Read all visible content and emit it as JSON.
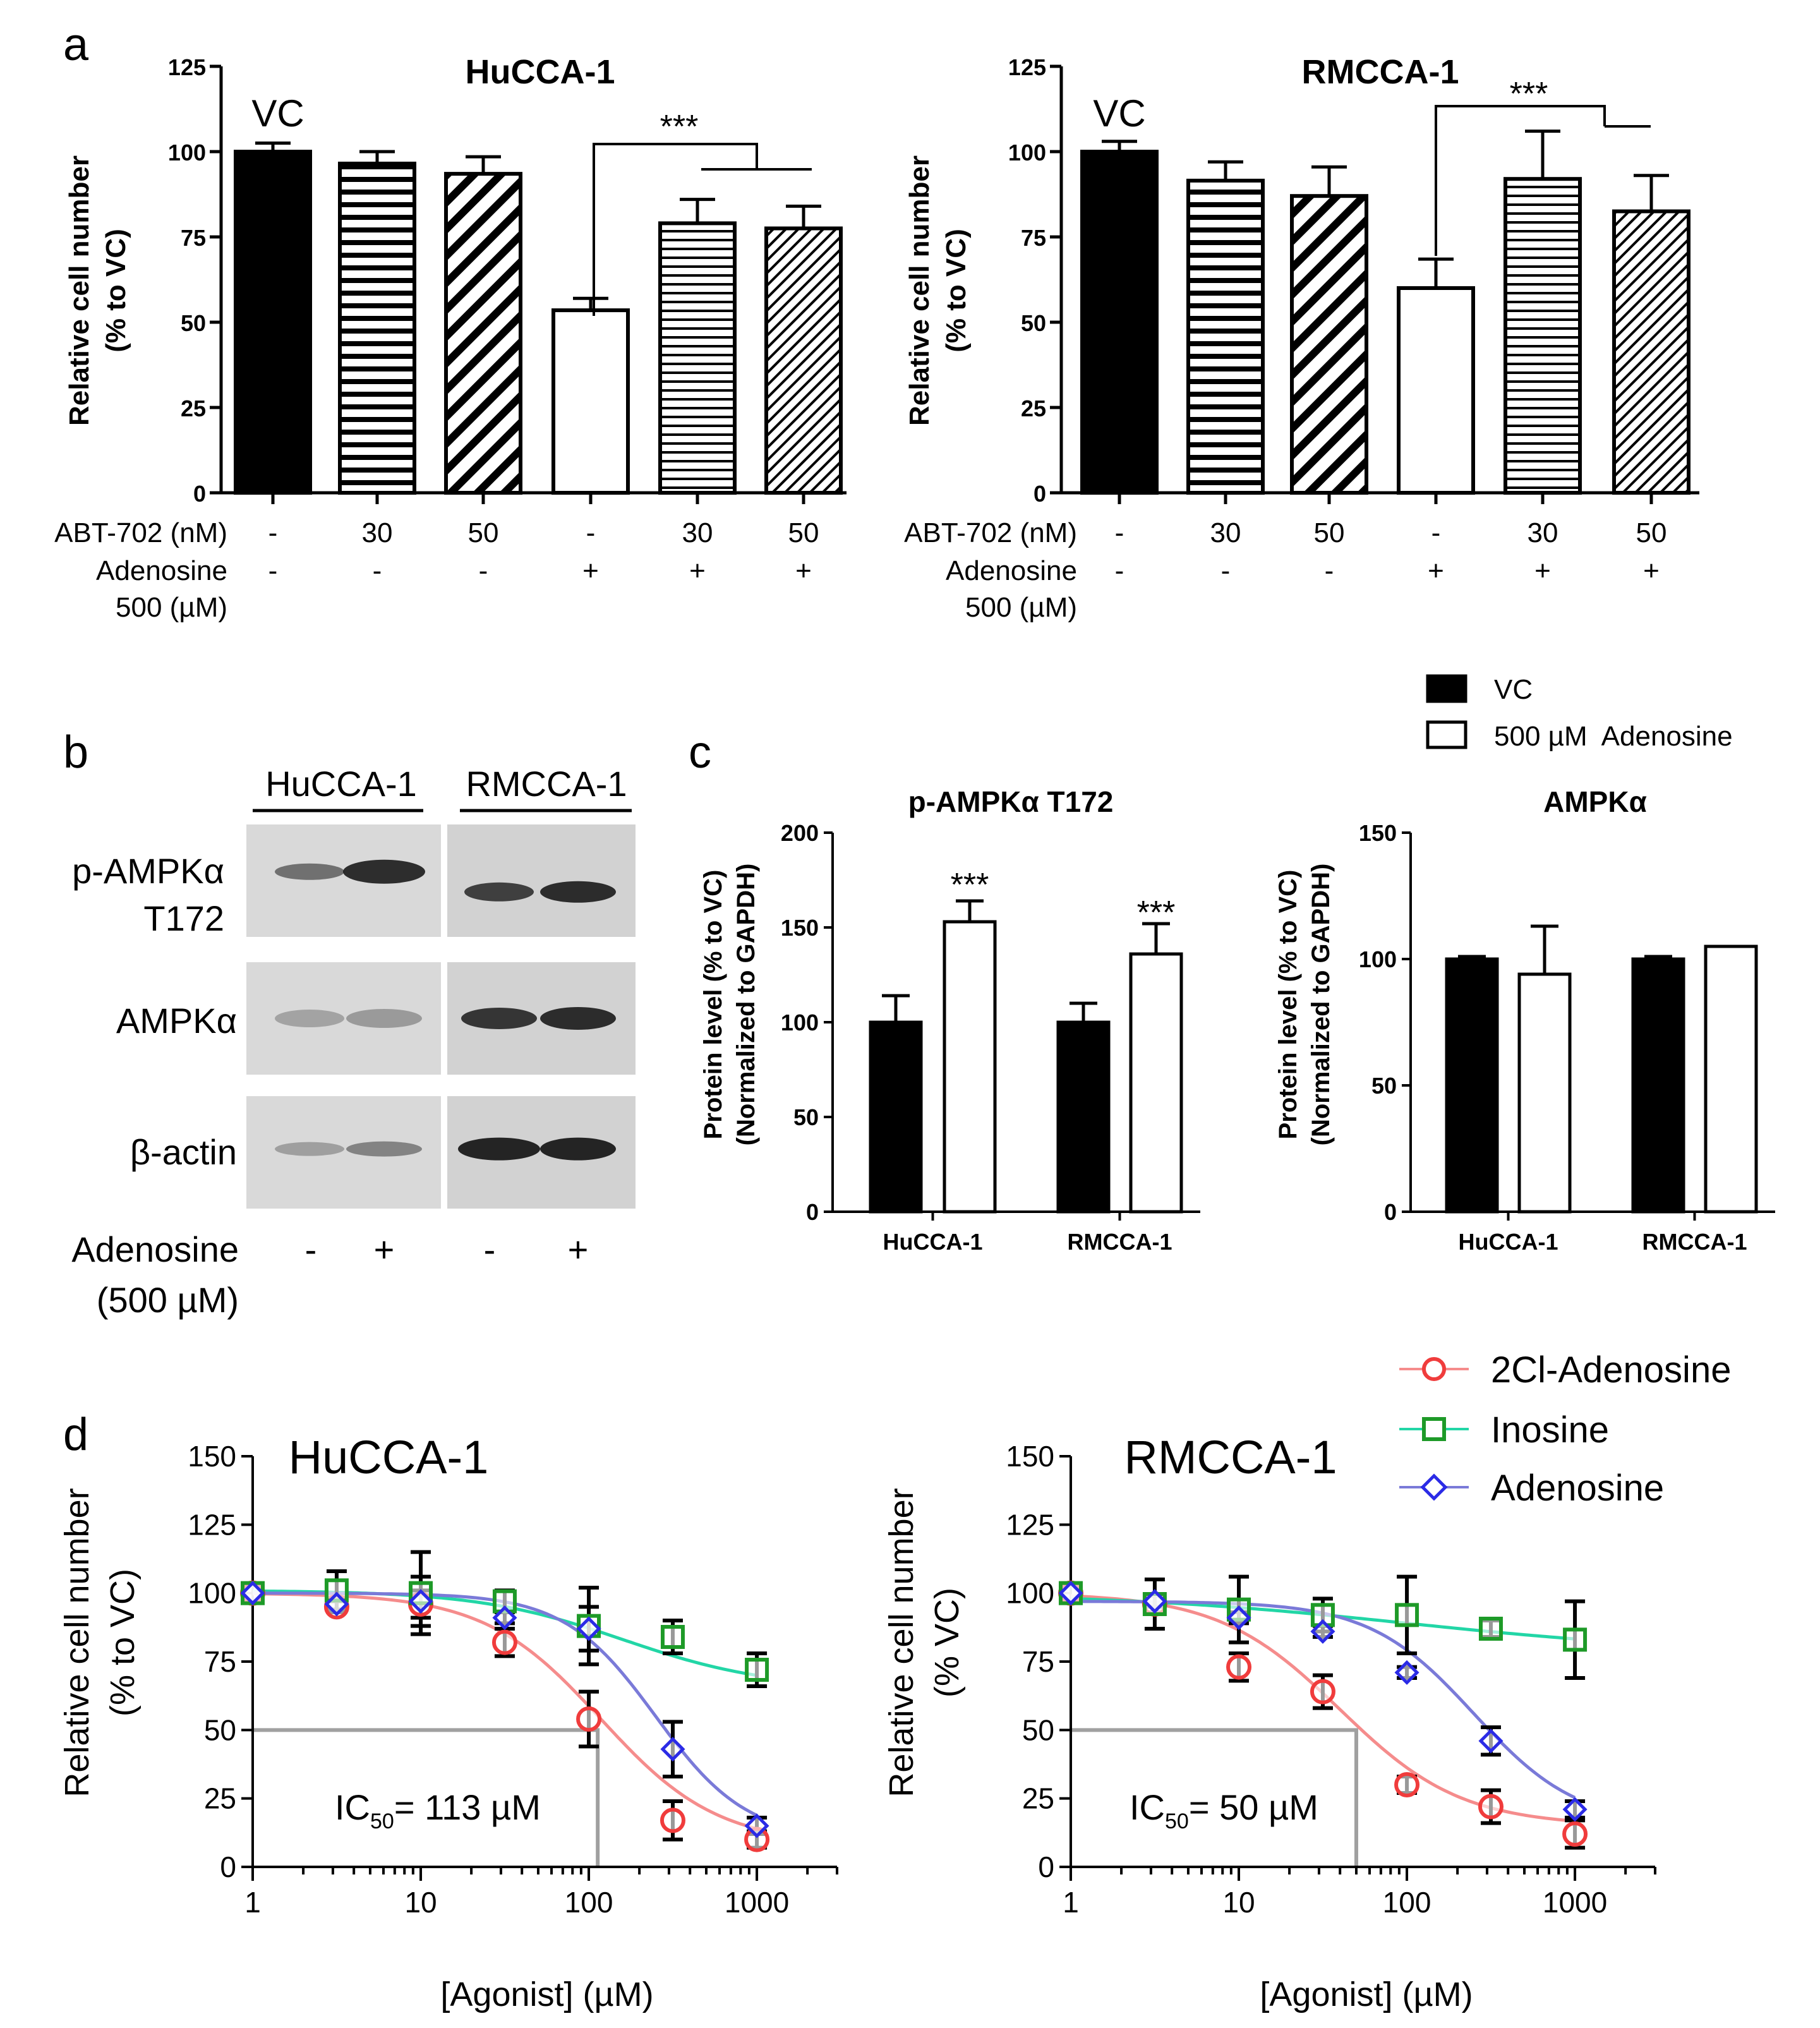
{
  "panels": {
    "a": "a",
    "b": "b",
    "c": "c",
    "d": "d"
  },
  "colors": {
    "red": "#f03c3c",
    "green": "#1e9a28",
    "blue": "#2b2be6",
    "teal": "#22d6a6",
    "pink": "#f58c8c",
    "slate": "#7a7ad8",
    "gray": "#a0a0a0"
  },
  "panel_a": {
    "ylabel_line1": "Relative cell number",
    "ylabel_line2": "(% to VC)",
    "vc_label": "VC",
    "sig": "***",
    "row1_label": "ABT-702 (nM)",
    "row2_label_line1": "Adenosine",
    "row2_label_line2": "500 (µM)",
    "row1_values": [
      "-",
      "30",
      "50",
      "-",
      "30",
      "50"
    ],
    "row2_values": [
      "-",
      "-",
      "-",
      "+",
      "+",
      "+"
    ]
  },
  "panel_b": {
    "groups": [
      "HuCCA-1",
      "RMCCA-1"
    ],
    "rows": [
      {
        "label1": "p-AMPKα",
        "label2": "T172"
      },
      {
        "label1": "AMPKα",
        "label2": ""
      },
      {
        "label1": "β-actin",
        "label2": ""
      }
    ],
    "bottom_label_line1": "Adenosine",
    "bottom_label_line2": "(500 µM)",
    "lanes": [
      "-",
      "+",
      "-",
      "+"
    ]
  },
  "panel_c": {
    "legend": [
      "VC",
      "500 µM  Adenosine"
    ],
    "ylabel_line1": "Protein level (% to VC)",
    "ylabel_line2": "(Normalized to GAPDH)",
    "sig": "***"
  },
  "panel_d": {
    "xlabel": "[Agonist] (µM)",
    "legend": [
      "2Cl-Adenosine",
      "Inosine",
      "Adenosine"
    ],
    "left_ylabel_line1": "Relative cell number",
    "left_ylabel_line2": "(% to VC)",
    "right_ylabel_line1": "Relative cell number",
    "right_ylabel_line2": "(% VC)",
    "left_ic50": {
      "prefix": "IC",
      "sub": "50",
      "suffix": "= 113 µM"
    },
    "right_ic50": {
      "prefix": "IC",
      "sub": "50",
      "suffix": "= 50 µM"
    }
  },
  "chart_data": [
    {
      "id": "a-hucca",
      "type": "bar",
      "title": "HuCCA-1",
      "ylim": [
        0,
        125
      ],
      "yticks": [
        0,
        25,
        50,
        75,
        100,
        125
      ],
      "categories": [
        "VC",
        "ABT 30",
        "ABT 50",
        "Ado",
        "Ado+ABT 30",
        "Ado+ABT 50"
      ],
      "values": [
        100,
        96.5,
        93.5,
        53.5,
        79,
        77.5
      ],
      "errors": [
        2.5,
        3.5,
        5,
        3.5,
        7,
        6.5
      ]
    },
    {
      "id": "a-rmcca",
      "type": "bar",
      "title": "RMCCA-1",
      "ylim": [
        0,
        125
      ],
      "yticks": [
        0,
        25,
        50,
        75,
        100,
        125
      ],
      "categories": [
        "VC",
        "ABT 30",
        "ABT 50",
        "Ado",
        "Ado+ABT 30",
        "Ado+ABT 50"
      ],
      "values": [
        100,
        91.5,
        87,
        60,
        92,
        82.5
      ],
      "errors": [
        3,
        5.5,
        8.5,
        8.5,
        14,
        10.5
      ]
    },
    {
      "id": "c-pampk",
      "type": "bar",
      "title": "p-AMPKα T172",
      "ylim": [
        0,
        200
      ],
      "yticks": [
        0,
        50,
        100,
        150,
        200
      ],
      "categories": [
        "HuCCA-1",
        "RMCCA-1"
      ],
      "series": [
        {
          "name": "VC",
          "values": [
            100,
            100
          ],
          "errors": [
            14,
            10
          ]
        },
        {
          "name": "500 µM  Adenosine",
          "values": [
            153,
            136
          ],
          "errors": [
            11,
            16
          ]
        }
      ]
    },
    {
      "id": "c-ampk",
      "type": "bar",
      "title": "AMPKα",
      "ylim": [
        0,
        150
      ],
      "yticks": [
        0,
        50,
        100,
        150
      ],
      "categories": [
        "HuCCA-1",
        "RMCCA-1"
      ],
      "series": [
        {
          "name": "VC",
          "values": [
            100,
            100
          ],
          "errors": [
            1,
            1
          ]
        },
        {
          "name": "500 µM  Adenosine",
          "values": [
            94,
            105
          ],
          "errors": [
            19,
            0
          ]
        }
      ]
    },
    {
      "id": "d-hucca",
      "type": "line",
      "title": "HuCCA-1",
      "xscale": "log",
      "xlim": [
        1,
        3000
      ],
      "ylim": [
        0,
        150
      ],
      "xticks": [
        1,
        10,
        100,
        1000
      ],
      "yticks": [
        0,
        25,
        50,
        75,
        100,
        125,
        150
      ],
      "ic50": 113,
      "x": [
        1,
        3.16,
        10,
        31.6,
        100,
        316,
        1000
      ],
      "series": [
        {
          "name": "2Cl-Adenosine",
          "values": [
            100,
            95,
            96,
            82,
            54,
            17,
            10
          ],
          "errors": [
            0,
            2,
            5,
            5,
            10,
            7,
            3
          ],
          "fit": {
            "top": 100,
            "bottom": 8,
            "ec50": 118,
            "hill": 1.25
          }
        },
        {
          "name": "Inosine",
          "values": [
            100,
            101,
            100,
            97,
            88,
            84,
            72
          ],
          "errors": [
            0,
            7,
            15,
            4,
            14,
            6,
            6
          ],
          "fit": {
            "top": 101,
            "bottom": 65,
            "ec50": 160,
            "hill": 1.0
          }
        },
        {
          "name": "Adenosine",
          "values": [
            100,
            96,
            97,
            91,
            87,
            43,
            15
          ],
          "errors": [
            0,
            2,
            9,
            2,
            8,
            10,
            3
          ],
          "fit": {
            "top": 100,
            "bottom": 10,
            "ec50": 250,
            "hill": 1.6
          }
        }
      ]
    },
    {
      "id": "d-rmcca",
      "type": "line",
      "title": "RMCCA-1",
      "xscale": "log",
      "xlim": [
        1,
        3000
      ],
      "ylim": [
        0,
        150
      ],
      "xticks": [
        1,
        10,
        100,
        1000
      ],
      "yticks": [
        0,
        25,
        50,
        75,
        100,
        125,
        150
      ],
      "ic50": 50,
      "x": [
        1,
        3.16,
        10,
        31.6,
        100,
        316,
        1000
      ],
      "series": [
        {
          "name": "2Cl-Adenosine",
          "values": [
            100,
            96,
            73,
            64,
            30,
            22,
            12
          ],
          "errors": [
            0,
            3,
            5,
            6,
            3,
            6,
            5
          ],
          "fit": {
            "top": 100,
            "bottom": 15,
            "ec50": 40,
            "hill": 1.2
          }
        },
        {
          "name": "Inosine",
          "values": [
            100,
            96,
            94,
            92,
            92,
            87,
            83
          ],
          "errors": [
            0,
            9,
            12,
            6,
            14,
            3,
            14
          ],
          "fit": {
            "top": 100,
            "bottom": 78,
            "ec50": 100,
            "hill": 0.5
          }
        },
        {
          "name": "Adenosine",
          "values": [
            100,
            97,
            91,
            86,
            71,
            46,
            21
          ],
          "errors": [
            0,
            2,
            2,
            2,
            2,
            5,
            3
          ],
          "fit": {
            "top": 97,
            "bottom": 15,
            "ec50": 250,
            "hill": 1.4
          }
        }
      ]
    }
  ]
}
